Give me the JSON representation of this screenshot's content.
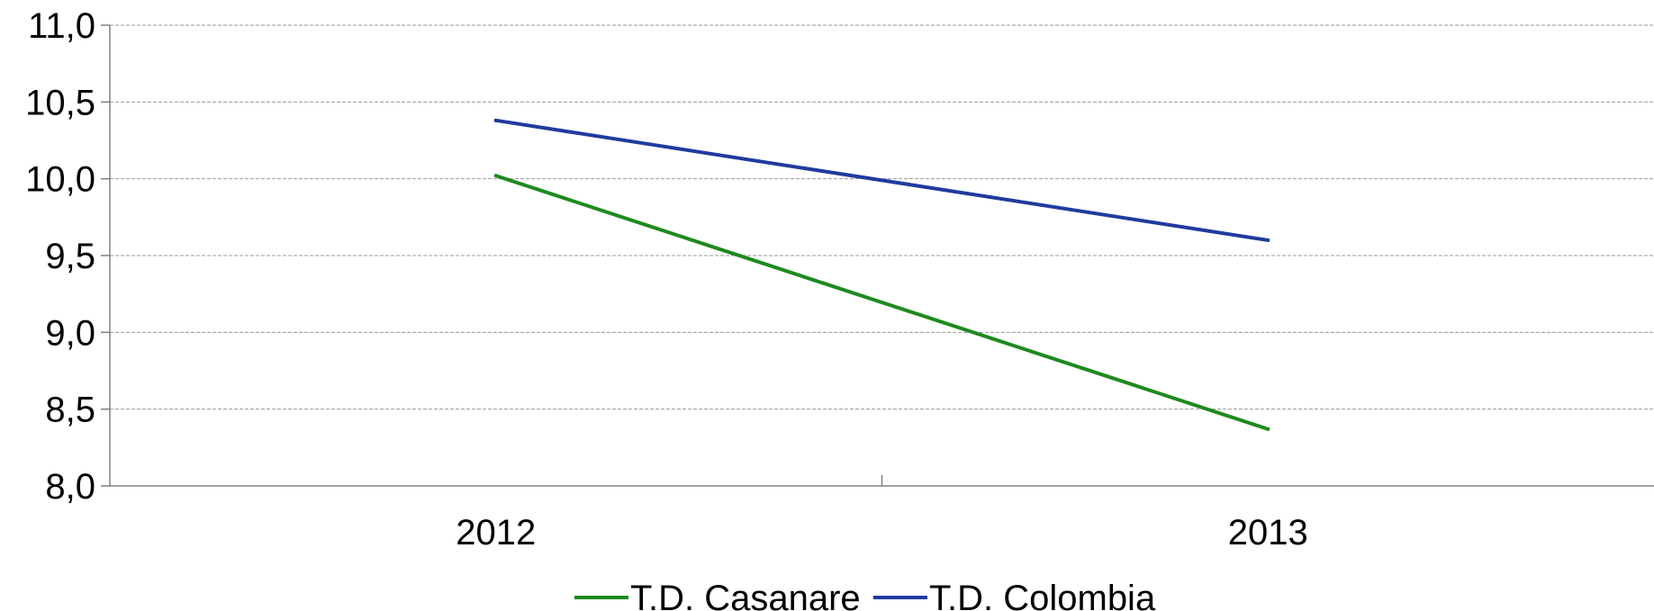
{
  "chart_data": {
    "type": "line",
    "title": "",
    "xlabel": "",
    "ylabel": "",
    "categories": [
      "2012",
      "2013"
    ],
    "ylim": [
      8.0,
      11.0
    ],
    "y_ticks": [
      "8,0",
      "8,5",
      "9,0",
      "9,5",
      "10,0",
      "10,5",
      "11,0"
    ],
    "y_tick_values": [
      8.0,
      8.5,
      9.0,
      9.5,
      10.0,
      10.5,
      11.0
    ],
    "grid": true,
    "legend_position": "bottom",
    "series": [
      {
        "name": "T.D. Casanare",
        "values": [
          10.02,
          8.37
        ],
        "color": "#1e8a1e"
      },
      {
        "name": "T.D. Colombia",
        "values": [
          10.38,
          9.6
        ],
        "color": "#1f3b9e"
      }
    ]
  }
}
